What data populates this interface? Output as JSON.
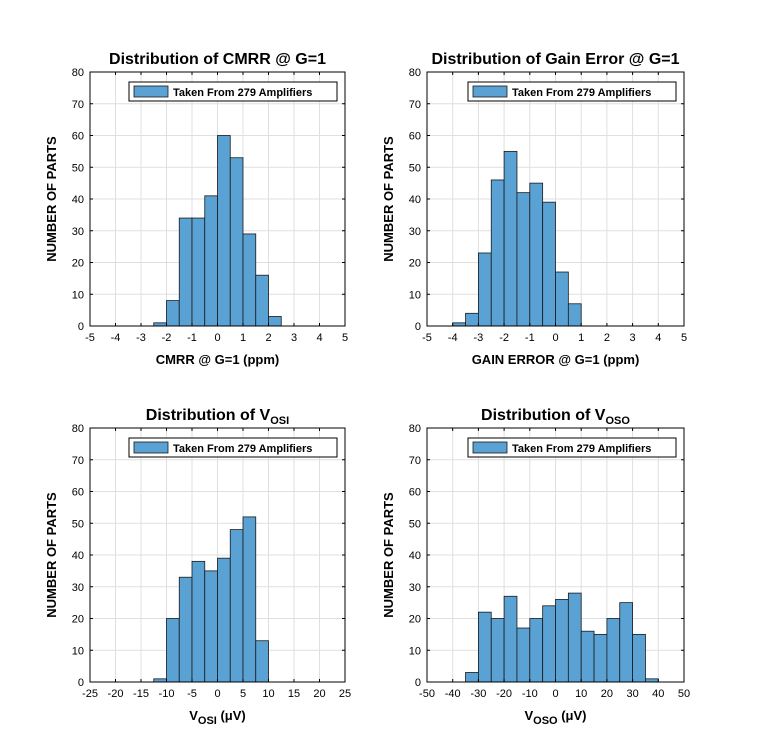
{
  "chart_data": [
    {
      "type": "bar",
      "title": {
        "text": "Distribution of CMRR @ G=1",
        "sub": ""
      },
      "xlabel": {
        "text": "CMRR @ G=1 (ppm)",
        "sub": "",
        "post": ""
      },
      "ylabel": "NUMBER OF PARTS",
      "legend": {
        "label": "Taken From 279 Amplifiers",
        "color": "#5aa1d4",
        "placement": "top-right"
      },
      "xlim": [
        -5,
        5
      ],
      "ylim": [
        0,
        80
      ],
      "xticks": [
        -5,
        -4,
        -3,
        -2,
        -1,
        0,
        1,
        2,
        3,
        4,
        5
      ],
      "yticks": [
        0,
        10,
        20,
        30,
        40,
        50,
        60,
        70,
        80
      ],
      "grid": true,
      "bin_edges": [
        -2.5,
        -2,
        -1.5,
        -1,
        -0.5,
        0,
        0.5,
        1,
        1.5,
        2,
        2.5
      ],
      "values": [
        1,
        8,
        34,
        34,
        41,
        60,
        53,
        29,
        16,
        3
      ]
    },
    {
      "type": "bar",
      "title": {
        "text": "Distribution of Gain Error @ G=1",
        "sub": ""
      },
      "xlabel": {
        "text": "GAIN ERROR @ G=1 (ppm)",
        "sub": "",
        "post": ""
      },
      "ylabel": "NUMBER OF PARTS",
      "legend": {
        "label": "Taken From 279 Amplifiers",
        "color": "#5aa1d4",
        "placement": "top-right"
      },
      "xlim": [
        -5,
        5
      ],
      "ylim": [
        0,
        80
      ],
      "xticks": [
        -5,
        -4,
        -3,
        -2,
        -1,
        0,
        1,
        2,
        3,
        4,
        5
      ],
      "yticks": [
        0,
        10,
        20,
        30,
        40,
        50,
        60,
        70,
        80
      ],
      "grid": true,
      "bin_edges": [
        -4,
        -3.5,
        -3,
        -2.5,
        -2,
        -1.5,
        -1,
        -0.5,
        0,
        0.5,
        1
      ],
      "values": [
        1,
        4,
        23,
        46,
        55,
        42,
        45,
        39,
        17,
        7
      ]
    },
    {
      "type": "bar",
      "title": {
        "text": "Distribution of V",
        "sub": "OSI"
      },
      "xlabel": {
        "text": "V",
        "sub": "OSI",
        "post": " (μV)"
      },
      "ylabel": "NUMBER OF PARTS",
      "legend": {
        "label": "Taken From 279 Amplifiers",
        "color": "#5aa1d4",
        "placement": "top-right"
      },
      "xlim": [
        -25,
        25
      ],
      "ylim": [
        0,
        80
      ],
      "xticks": [
        -25,
        -20,
        -15,
        -10,
        -5,
        0,
        5,
        10,
        15,
        20,
        25
      ],
      "yticks": [
        0,
        10,
        20,
        30,
        40,
        50,
        60,
        70,
        80
      ],
      "grid": true,
      "bin_edges": [
        -12.5,
        -10,
        -7.5,
        -5,
        -2.5,
        0,
        2.5,
        5,
        7.5,
        10
      ],
      "values": [
        1,
        20,
        33,
        38,
        35,
        39,
        48,
        52,
        13
      ]
    },
    {
      "type": "bar",
      "title": {
        "text": "Distribution of V",
        "sub": "OSO"
      },
      "xlabel": {
        "text": "V",
        "sub": "OSO",
        "post": " (μV)"
      },
      "ylabel": "NUMBER OF PARTS",
      "legend": {
        "label": "Taken From 279 Amplifiers",
        "color": "#5aa1d4",
        "placement": "top-right"
      },
      "xlim": [
        -50,
        50
      ],
      "ylim": [
        0,
        80
      ],
      "xticks": [
        -50,
        -40,
        -30,
        -20,
        -10,
        0,
        10,
        20,
        30,
        40,
        50
      ],
      "yticks": [
        0,
        10,
        20,
        30,
        40,
        50,
        60,
        70,
        80
      ],
      "grid": true,
      "bin_edges": [
        -35,
        -30,
        -25,
        -20,
        -15,
        -10,
        -5,
        0,
        5,
        10,
        15,
        20,
        25,
        30,
        35,
        40
      ],
      "values": [
        3,
        22,
        20,
        27,
        17,
        20,
        24,
        26,
        28,
        16,
        15,
        20,
        25,
        15,
        1
      ]
    }
  ]
}
